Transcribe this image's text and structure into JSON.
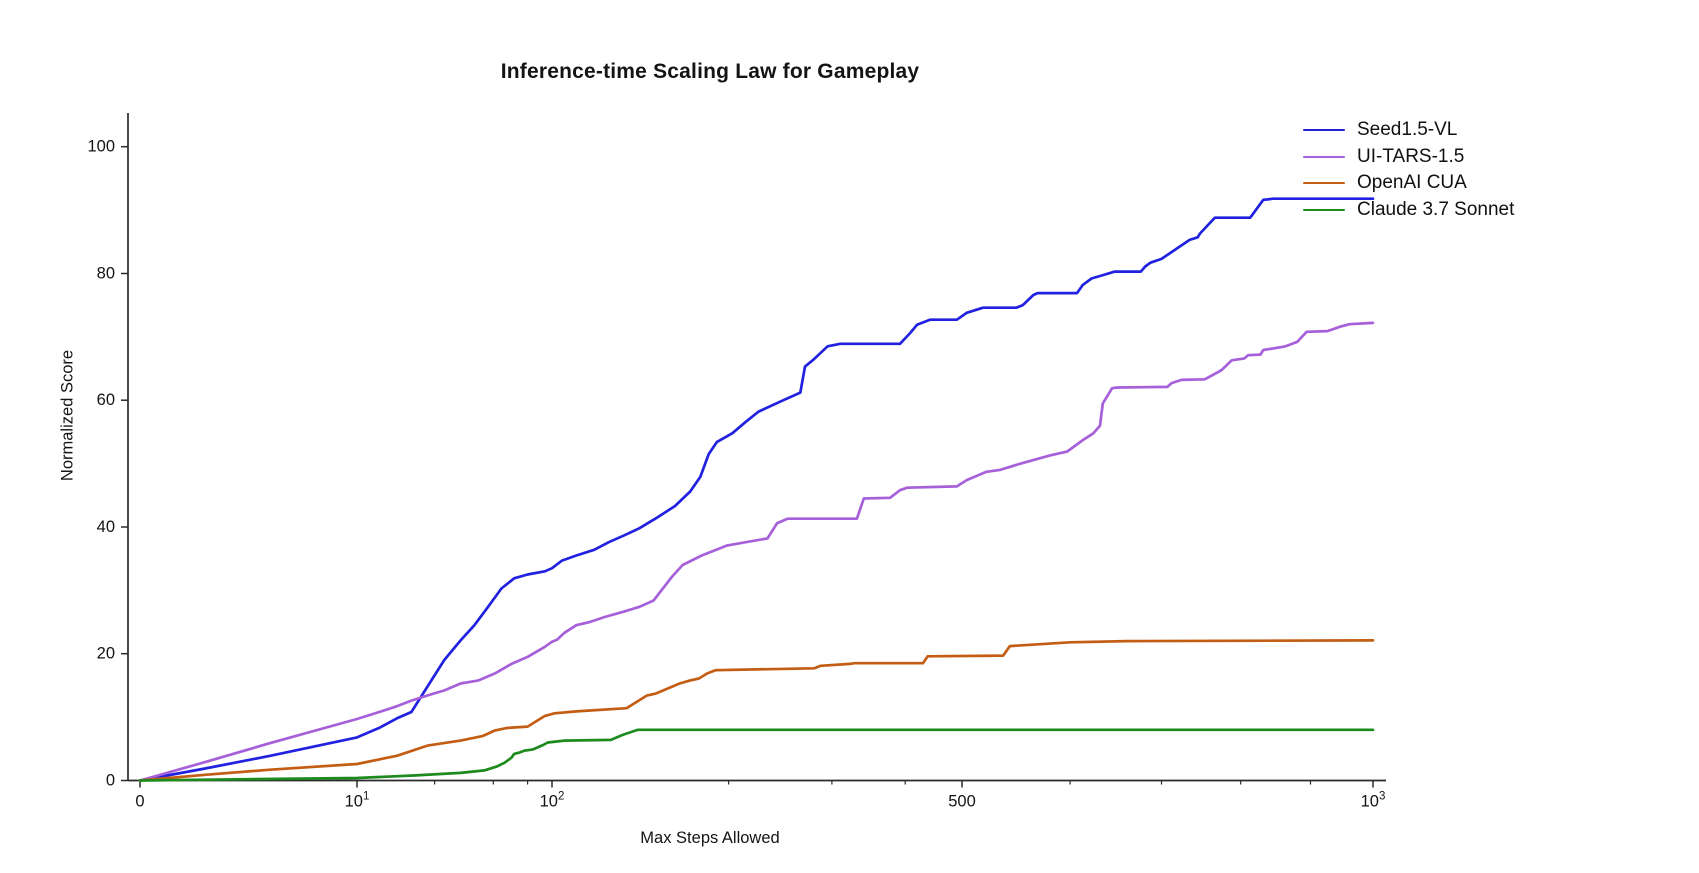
{
  "chart_data": {
    "type": "line",
    "title": "Inference-time Scaling Law for Gameplay",
    "xlabel": "Max Steps Allowed",
    "ylabel": "Normalized Score",
    "grid": false,
    "legend_position": "top-right",
    "colors": {
      "axis": "#2a2a2a",
      "tick_text": "#141414"
    },
    "x_axis": {
      "scale": "linear 0-10, then logarithmic (custom anchor spacing)",
      "range": [
        0,
        1000
      ],
      "major_ticks": [
        {
          "value": 0,
          "label": "0",
          "sup": ""
        },
        {
          "value": 10,
          "label": "10",
          "sup": "1"
        },
        {
          "value": 100,
          "label": "10",
          "sup": "2"
        },
        {
          "value": 500,
          "label": "500",
          "sup": ""
        },
        {
          "value": 1000,
          "label": "10",
          "sup": "3"
        }
      ],
      "minor_tick_values": [
        25,
        50,
        75,
        200,
        300,
        400,
        600,
        700,
        800,
        900
      ],
      "anchor_fractions": [
        [
          0,
          0
        ],
        [
          10,
          0.17599
        ],
        [
          100,
          0.33414
        ],
        [
          500,
          0.66667
        ],
        [
          1000,
          1.0
        ]
      ]
    },
    "y_axis": {
      "range": [
        0,
        100
      ],
      "ticks": [
        0,
        20,
        40,
        60,
        80,
        100
      ]
    },
    "series": [
      {
        "name": "Seed1.5-VL",
        "color": "#2121e0",
        "points": [
          [
            0,
            0
          ],
          [
            3,
            1.9
          ],
          [
            6,
            3.9
          ],
          [
            10,
            6.8
          ],
          [
            13,
            8.3
          ],
          [
            16,
            9.8
          ],
          [
            19,
            10.8
          ],
          [
            22,
            13.9
          ],
          [
            28,
            19.0
          ],
          [
            34,
            22.1
          ],
          [
            40,
            24.5
          ],
          [
            47,
            27.4
          ],
          [
            55,
            30.3
          ],
          [
            64,
            31.9
          ],
          [
            75,
            32.5
          ],
          [
            92,
            33.0
          ],
          [
            100,
            33.5
          ],
          [
            104,
            34.7
          ],
          [
            110,
            35.5
          ],
          [
            118,
            36.4
          ],
          [
            125,
            37.6
          ],
          [
            133,
            38.7
          ],
          [
            141,
            39.8
          ],
          [
            150,
            41.3
          ],
          [
            162,
            43.3
          ],
          [
            172,
            45.6
          ],
          [
            179,
            47.9
          ],
          [
            185,
            51.5
          ],
          [
            191,
            53.4
          ],
          [
            203,
            54.8
          ],
          [
            214,
            56.6
          ],
          [
            225,
            58.2
          ],
          [
            248,
            60.0
          ],
          [
            265,
            61.2
          ],
          [
            270,
            65.3
          ],
          [
            279,
            66.4
          ],
          [
            295,
            68.5
          ],
          [
            310,
            68.9
          ],
          [
            392,
            68.9
          ],
          [
            408,
            70.6
          ],
          [
            419,
            71.9
          ],
          [
            441,
            72.7
          ],
          [
            490,
            72.7
          ],
          [
            504,
            73.8
          ],
          [
            518,
            74.6
          ],
          [
            548,
            74.6
          ],
          [
            554,
            75.0
          ],
          [
            564,
            76.6
          ],
          [
            568,
            76.9
          ],
          [
            607,
            76.9
          ],
          [
            613,
            78.2
          ],
          [
            622,
            79.2
          ],
          [
            631,
            79.6
          ],
          [
            647,
            80.3
          ],
          [
            676,
            80.3
          ],
          [
            681,
            81.1
          ],
          [
            687,
            81.7
          ],
          [
            700,
            82.3
          ],
          [
            734,
            85.3
          ],
          [
            744,
            85.7
          ],
          [
            747,
            86.3
          ],
          [
            766,
            88.8
          ],
          [
            813,
            88.8
          ],
          [
            831,
            91.6
          ],
          [
            845,
            91.8
          ],
          [
            1000,
            91.8
          ]
        ]
      },
      {
        "name": "UI-TARS-1.5",
        "color": "#a660d9",
        "points": [
          [
            0,
            0
          ],
          [
            3,
            2.9
          ],
          [
            6,
            5.9
          ],
          [
            10,
            9.7
          ],
          [
            13,
            10.8
          ],
          [
            16,
            11.7
          ],
          [
            19,
            12.6
          ],
          [
            24,
            13.6
          ],
          [
            28,
            14.2
          ],
          [
            34,
            15.3
          ],
          [
            42,
            15.8
          ],
          [
            51,
            16.9
          ],
          [
            62,
            18.4
          ],
          [
            75,
            19.5
          ],
          [
            92,
            21.1
          ],
          [
            100,
            21.9
          ],
          [
            102,
            22.2
          ],
          [
            105,
            23.3
          ],
          [
            110,
            24.5
          ],
          [
            116,
            25.0
          ],
          [
            123,
            25.8
          ],
          [
            132,
            26.6
          ],
          [
            141,
            27.4
          ],
          [
            149,
            28.4
          ],
          [
            160,
            32.1
          ],
          [
            167,
            34.0
          ],
          [
            180,
            35.5
          ],
          [
            199,
            37.1
          ],
          [
            233,
            38.2
          ],
          [
            242,
            40.6
          ],
          [
            252,
            41.3
          ],
          [
            331,
            41.3
          ],
          [
            340,
            44.5
          ],
          [
            377,
            44.6
          ],
          [
            392,
            45.8
          ],
          [
            403,
            46.2
          ],
          [
            490,
            46.4
          ],
          [
            504,
            47.4
          ],
          [
            521,
            48.7
          ],
          [
            533,
            49.0
          ],
          [
            552,
            50.0
          ],
          [
            580,
            51.3
          ],
          [
            597,
            51.9
          ],
          [
            613,
            53.7
          ],
          [
            624,
            54.8
          ],
          [
            631,
            56.0
          ],
          [
            634,
            59.5
          ],
          [
            644,
            61.9
          ],
          [
            650,
            62.0
          ],
          [
            707,
            62.1
          ],
          [
            712,
            62.7
          ],
          [
            724,
            63.2
          ],
          [
            753,
            63.3
          ],
          [
            771,
            64.5
          ],
          [
            775,
            64.8
          ],
          [
            788,
            66.3
          ],
          [
            805,
            66.6
          ],
          [
            810,
            67.1
          ],
          [
            827,
            67.2
          ],
          [
            831,
            67.9
          ],
          [
            863,
            68.5
          ],
          [
            880,
            69.2
          ],
          [
            894,
            70.8
          ],
          [
            926,
            70.9
          ],
          [
            946,
            71.6
          ],
          [
            961,
            72.0
          ],
          [
            1000,
            72.2
          ]
        ]
      },
      {
        "name": "OpenAI CUA",
        "color": "#c45d14",
        "points": [
          [
            0,
            0
          ],
          [
            3,
            0.9
          ],
          [
            6,
            1.7
          ],
          [
            10,
            2.6
          ],
          [
            16,
            3.9
          ],
          [
            23,
            5.5
          ],
          [
            34,
            6.3
          ],
          [
            44,
            7.0
          ],
          [
            51,
            7.9
          ],
          [
            59,
            8.3
          ],
          [
            75,
            8.5
          ],
          [
            92,
            10.2
          ],
          [
            101,
            10.6
          ],
          [
            110,
            10.9
          ],
          [
            134,
            11.4
          ],
          [
            145,
            13.4
          ],
          [
            150,
            13.7
          ],
          [
            165,
            15.3
          ],
          [
            172,
            15.8
          ],
          [
            178,
            16.1
          ],
          [
            184,
            16.9
          ],
          [
            190,
            17.4
          ],
          [
            280,
            17.7
          ],
          [
            287,
            18.1
          ],
          [
            322,
            18.4
          ],
          [
            328,
            18.5
          ],
          [
            429,
            18.5
          ],
          [
            437,
            19.6
          ],
          [
            536,
            19.7
          ],
          [
            542,
            21.2
          ],
          [
            600,
            21.8
          ],
          [
            660,
            22.0
          ],
          [
            1000,
            22.1
          ]
        ]
      },
      {
        "name": "Claude 3.7 Sonnet",
        "color": "#1d8a1d",
        "points": [
          [
            0,
            0
          ],
          [
            5,
            0.2
          ],
          [
            10,
            0.4
          ],
          [
            20,
            0.8
          ],
          [
            34,
            1.2
          ],
          [
            45,
            1.6
          ],
          [
            52,
            2.2
          ],
          [
            57,
            2.8
          ],
          [
            62,
            3.6
          ],
          [
            64,
            4.2
          ],
          [
            68,
            4.4
          ],
          [
            72,
            4.7
          ],
          [
            80,
            4.9
          ],
          [
            90,
            5.6
          ],
          [
            95,
            6.0
          ],
          [
            105,
            6.3
          ],
          [
            126,
            6.4
          ],
          [
            132,
            7.2
          ],
          [
            140,
            8.0
          ],
          [
            1000,
            8.0
          ]
        ]
      }
    ]
  }
}
